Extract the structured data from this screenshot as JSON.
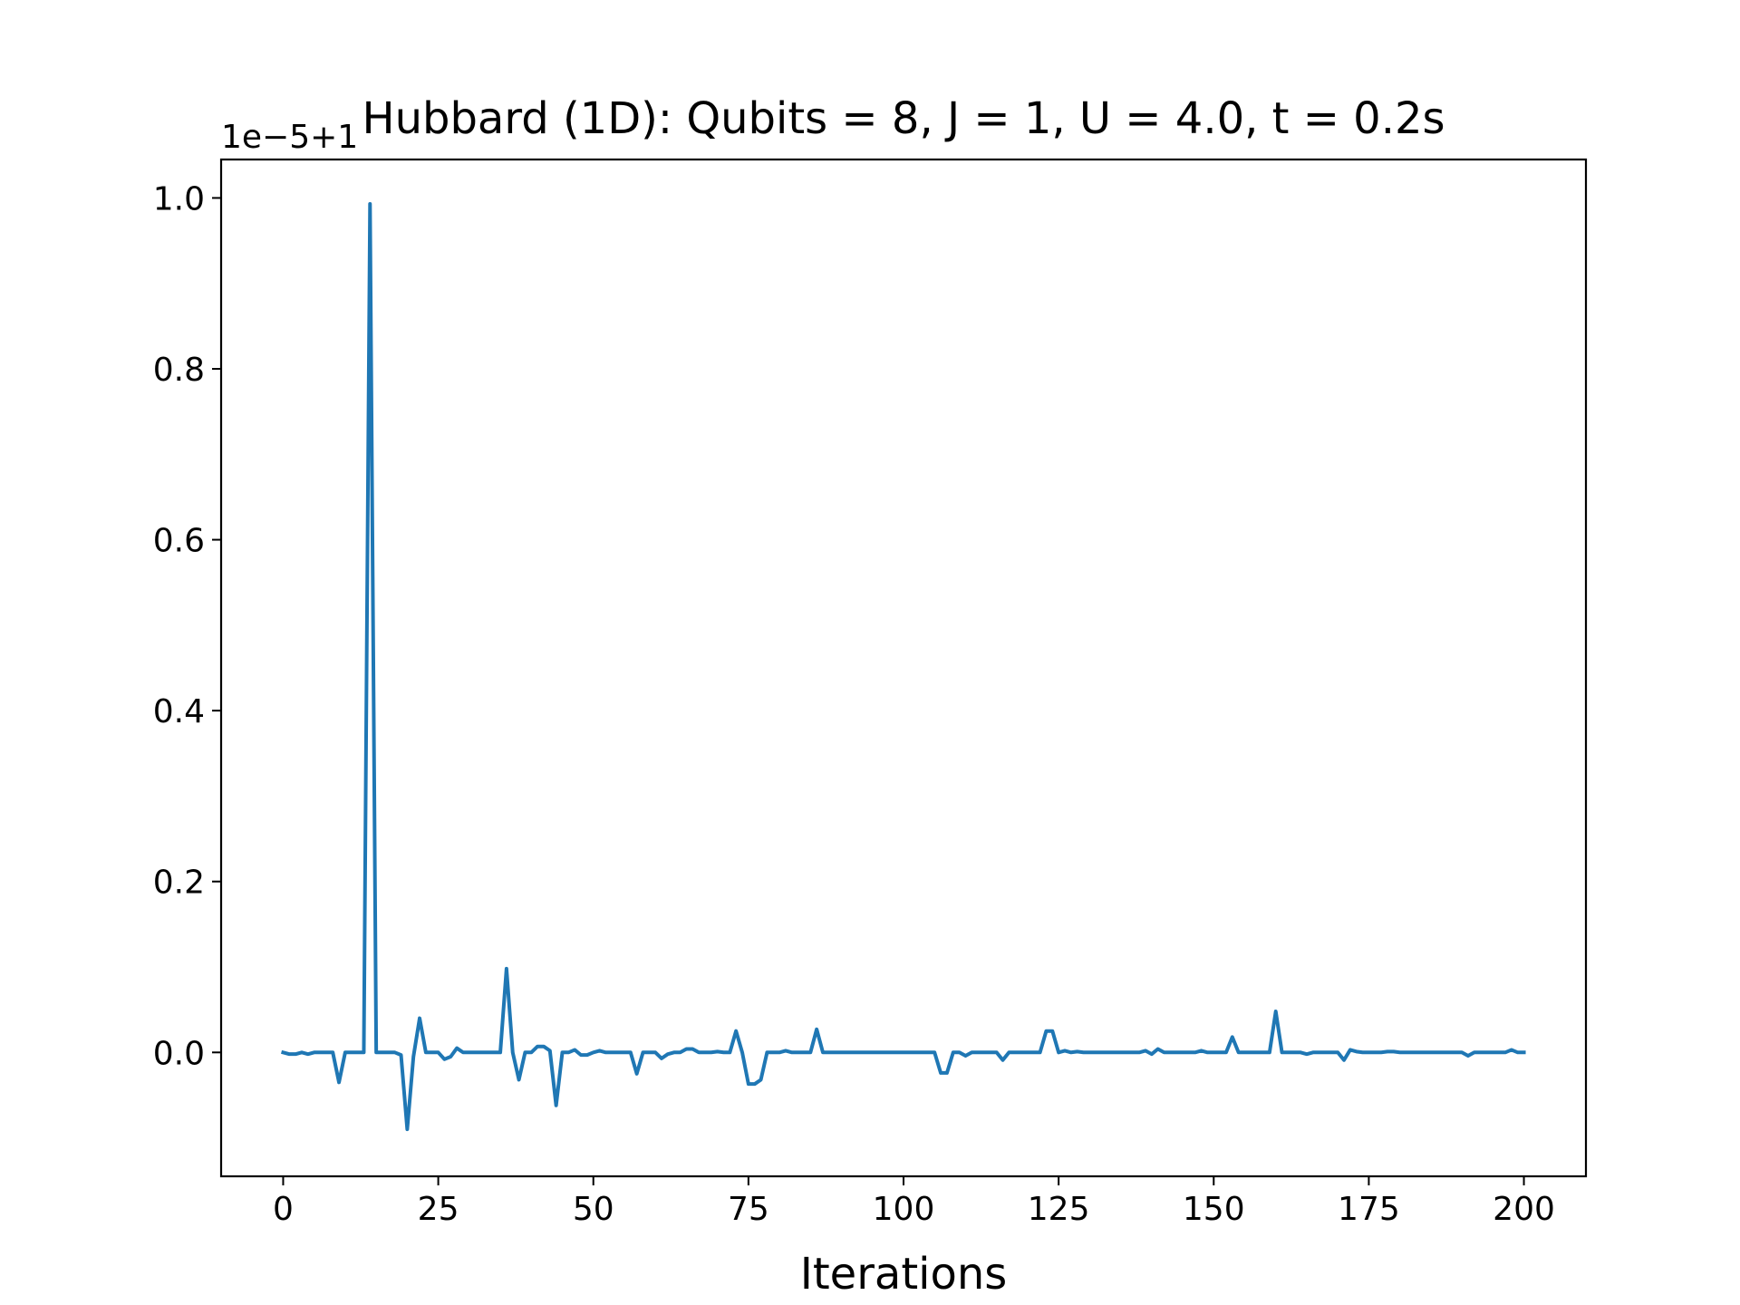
{
  "chart_data": {
    "type": "line",
    "title": "Hubbard (1D): Qubits = 8, J = 1, U = 4.0, t = 0.2s",
    "xlabel": "Iterations",
    "ylabel": "",
    "offset_text": "1e−5+1",
    "xlim": [
      -10,
      210
    ],
    "ylim": [
      -0.145,
      1.045
    ],
    "xticks": [
      0,
      25,
      50,
      75,
      100,
      125,
      150,
      175,
      200
    ],
    "xtick_labels": [
      "0",
      "25",
      "50",
      "75",
      "100",
      "125",
      "150",
      "175",
      "200"
    ],
    "yticks": [
      0.0,
      0.2,
      0.4,
      0.6,
      0.8,
      1.0
    ],
    "ytick_labels": [
      "0.0",
      "0.2",
      "0.4",
      "0.6",
      "0.8",
      "1.0"
    ],
    "grid": false,
    "legend": "none",
    "color": "#1f77b4",
    "x_start": 0,
    "x_step": 1,
    "series": [
      {
        "values": [
          0.0,
          -0.002,
          -0.002,
          0.0,
          -0.002,
          0.0,
          0.0,
          0.0,
          0.0,
          -0.035,
          0.0,
          0.0,
          0.0,
          0.0,
          0.993,
          0.0,
          0.0,
          0.0,
          0.0,
          -0.003,
          -0.09,
          -0.005,
          0.04,
          0.0,
          0.0,
          0.0,
          -0.008,
          -0.005,
          0.005,
          0.0,
          0.0,
          0.0,
          0.0,
          0.0,
          0.0,
          0.0,
          0.098,
          0.0,
          -0.032,
          0.0,
          0.0,
          0.007,
          0.007,
          0.002,
          -0.062,
          0.0,
          0.0,
          0.003,
          -0.003,
          -0.003,
          0.0,
          0.002,
          0.0,
          0.0,
          0.0,
          0.0,
          0.0,
          -0.025,
          0.0,
          0.0,
          0.0,
          -0.007,
          -0.002,
          0.0,
          0.0,
          0.004,
          0.004,
          0.0,
          0.0,
          0.0,
          0.001,
          0.0,
          0.0,
          0.025,
          0.0,
          -0.037,
          -0.037,
          -0.032,
          0.0,
          0.0,
          0.0,
          0.002,
          0.0,
          0.0,
          0.0,
          0.0,
          0.027,
          0.0,
          0.0,
          0.0,
          0.0,
          0.0,
          0.0,
          0.0,
          0.0,
          0.0,
          0.0,
          0.0,
          0.0,
          0.0,
          0.0,
          0.0,
          0.0,
          0.0,
          0.0,
          0.0,
          -0.024,
          -0.024,
          0.0,
          0.0,
          -0.004,
          0.0,
          0.0,
          0.0,
          0.0,
          0.0,
          -0.009,
          0.0,
          0.0,
          0.0,
          0.0,
          0.0,
          0.0,
          0.025,
          0.025,
          0.0,
          0.002,
          0.0,
          0.001,
          0.0,
          0.0,
          0.0,
          0.0,
          0.0,
          0.0,
          0.0,
          0.0,
          0.0,
          0.0,
          0.002,
          -0.002,
          0.004,
          0.0,
          0.0,
          0.0,
          0.0,
          0.0,
          0.0,
          0.002,
          0.0,
          0.0,
          0.0,
          0.0,
          0.018,
          0.0,
          0.0,
          0.0,
          0.0,
          0.0,
          0.0,
          0.048,
          0.0,
          0.0,
          0.0,
          0.0,
          -0.002,
          0.0,
          0.0,
          0.0,
          0.0,
          0.0,
          -0.009,
          0.003,
          0.001,
          0.0,
          0.0,
          0.0,
          0.0,
          0.001,
          0.001,
          0.0,
          0.0,
          0.0,
          0.0,
          0.0,
          0.0,
          0.0,
          0.0,
          0.0,
          0.0,
          0.0,
          -0.004,
          0.0,
          0.0,
          0.0,
          0.0,
          0.0,
          0.0,
          0.003,
          0.0,
          0.0
        ]
      }
    ]
  }
}
